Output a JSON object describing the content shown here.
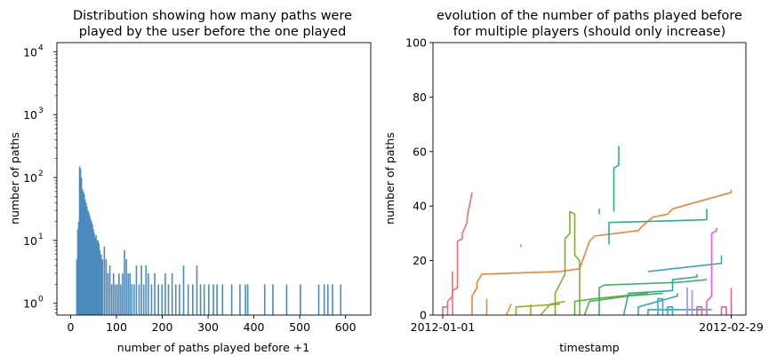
{
  "chart_data": [
    {
      "type": "bar",
      "title_lines": [
        "Distribution showing how many paths were",
        "played by the user before the one played"
      ],
      "xlabel": "number of paths played before +1",
      "ylabel": "number of paths",
      "xlim": [
        -30,
        655
      ],
      "ylim": [
        0.65,
        14000
      ],
      "yscale": "log",
      "x_ticks": [
        0,
        100,
        200,
        300,
        400,
        500,
        600
      ],
      "x_tick_labels": [
        "0",
        "100",
        "200",
        "300",
        "400",
        "500",
        "600"
      ],
      "y_ticks": [
        1,
        10,
        100,
        1000,
        10000
      ],
      "y_tick_labels": [
        "10",
        "10",
        "10",
        "10",
        "10"
      ],
      "y_tick_exponents": [
        "0",
        "1",
        "2",
        "3",
        "4"
      ],
      "bar_color": "#4b8bbe",
      "bars": [
        {
          "x": 12,
          "value": 5
        },
        {
          "x": 14,
          "value": 15
        },
        {
          "x": 16,
          "value": 20
        },
        {
          "x": 18,
          "value": 150
        },
        {
          "x": 20,
          "value": 140
        },
        {
          "x": 22,
          "value": 100
        },
        {
          "x": 24,
          "value": 65
        },
        {
          "x": 26,
          "value": 60
        },
        {
          "x": 28,
          "value": 55
        },
        {
          "x": 30,
          "value": 45
        },
        {
          "x": 32,
          "value": 40
        },
        {
          "x": 34,
          "value": 35
        },
        {
          "x": 36,
          "value": 30
        },
        {
          "x": 38,
          "value": 28
        },
        {
          "x": 40,
          "value": 25
        },
        {
          "x": 42,
          "value": 22
        },
        {
          "x": 44,
          "value": 20
        },
        {
          "x": 46,
          "value": 18
        },
        {
          "x": 48,
          "value": 15
        },
        {
          "x": 50,
          "value": 13
        },
        {
          "x": 52,
          "value": 11
        },
        {
          "x": 54,
          "value": 12
        },
        {
          "x": 56,
          "value": 10
        },
        {
          "x": 58,
          "value": 10
        },
        {
          "x": 60,
          "value": 9
        },
        {
          "x": 62,
          "value": 7
        },
        {
          "x": 65,
          "value": 6
        },
        {
          "x": 68,
          "value": 5
        },
        {
          "x": 72,
          "value": 8
        },
        {
          "x": 76,
          "value": 5
        },
        {
          "x": 80,
          "value": 3
        },
        {
          "x": 84,
          "value": 4
        },
        {
          "x": 88,
          "value": 2
        },
        {
          "x": 92,
          "value": 3
        },
        {
          "x": 96,
          "value": 2
        },
        {
          "x": 100,
          "value": 2
        },
        {
          "x": 104,
          "value": 3
        },
        {
          "x": 108,
          "value": 2
        },
        {
          "x": 112,
          "value": 3
        },
        {
          "x": 116,
          "value": 7
        },
        {
          "x": 120,
          "value": 5
        },
        {
          "x": 124,
          "value": 3
        },
        {
          "x": 128,
          "value": 3
        },
        {
          "x": 132,
          "value": 2
        },
        {
          "x": 137,
          "value": 2
        },
        {
          "x": 142,
          "value": 4
        },
        {
          "x": 148,
          "value": 2
        },
        {
          "x": 153,
          "value": 4
        },
        {
          "x": 158,
          "value": 2
        },
        {
          "x": 163,
          "value": 4
        },
        {
          "x": 168,
          "value": 3
        },
        {
          "x": 175,
          "value": 2
        },
        {
          "x": 182,
          "value": 3
        },
        {
          "x": 190,
          "value": 2
        },
        {
          "x": 198,
          "value": 2
        },
        {
          "x": 205,
          "value": 3
        },
        {
          "x": 212,
          "value": 2
        },
        {
          "x": 220,
          "value": 3
        },
        {
          "x": 228,
          "value": 2
        },
        {
          "x": 236,
          "value": 2
        },
        {
          "x": 245,
          "value": 4
        },
        {
          "x": 255,
          "value": 2
        },
        {
          "x": 265,
          "value": 2
        },
        {
          "x": 274,
          "value": 4
        },
        {
          "x": 282,
          "value": 2
        },
        {
          "x": 290,
          "value": 2
        },
        {
          "x": 300,
          "value": 2
        },
        {
          "x": 310,
          "value": 2
        },
        {
          "x": 318,
          "value": 2
        },
        {
          "x": 330,
          "value": 2
        },
        {
          "x": 350,
          "value": 2
        },
        {
          "x": 368,
          "value": 2
        },
        {
          "x": 380,
          "value": 2
        },
        {
          "x": 385,
          "value": 2
        },
        {
          "x": 422,
          "value": 2
        },
        {
          "x": 440,
          "value": 2
        },
        {
          "x": 470,
          "value": 2
        },
        {
          "x": 500,
          "value": 2
        },
        {
          "x": 540,
          "value": 2
        },
        {
          "x": 552,
          "value": 2
        },
        {
          "x": 560,
          "value": 2
        },
        {
          "x": 570,
          "value": 2
        },
        {
          "x": 588,
          "value": 2
        }
      ]
    },
    {
      "type": "line",
      "title_lines": [
        "evolution of the number of paths played before",
        "for multiple players (should only increase)"
      ],
      "xlabel": "timestamp",
      "ylabel": "number of paths",
      "xlim": [
        "2011-12-30",
        "2012-03-03"
      ],
      "ylim": [
        0,
        100
      ],
      "y_ticks": [
        0,
        20,
        40,
        60,
        80,
        100
      ],
      "y_tick_labels": [
        "0",
        "20",
        "40",
        "60",
        "80",
        "100"
      ],
      "x_ticks": [
        "2012-01-01",
        "2012-02-29"
      ],
      "x_tick_labels": [
        "2012-01-01",
        "2012-02-29"
      ],
      "series": [
        {
          "color": "#e8716e",
          "points": [
            [
              "2012-01-01",
              0
            ],
            [
              "2012-01-01",
              3
            ],
            [
              "2012-01-02",
              3
            ],
            [
              "2012-01-02",
              5
            ],
            [
              "2012-01-03",
              7
            ],
            [
              "2012-01-03",
              9
            ],
            [
              "2012-01-04",
              10
            ],
            [
              "2012-01-04",
              27
            ],
            [
              "2012-01-05",
              28
            ],
            [
              "2012-01-05",
              30
            ],
            [
              "2012-01-06",
              34
            ],
            [
              "2012-01-06",
              36
            ],
            [
              "2012-01-07",
              45
            ]
          ]
        },
        {
          "color": "#e8716e",
          "points": [
            [
              "2012-01-03",
              0
            ],
            [
              "2012-01-03",
              8
            ],
            [
              "2012-01-03",
              16
            ]
          ]
        },
        {
          "color": "#e8716e",
          "points": [
            [
              "2012-01-02",
              0
            ],
            [
              "2012-01-02",
              4
            ]
          ]
        },
        {
          "color": "#e8863a",
          "points": [
            [
              "2012-01-07",
              0
            ],
            [
              "2012-01-07",
              7
            ],
            [
              "2012-01-08",
              10
            ],
            [
              "2012-01-08",
              12
            ],
            [
              "2012-01-09",
              15
            ],
            [
              "2012-01-25",
              16
            ],
            [
              "2012-01-29",
              17
            ],
            [
              "2012-01-30",
              22
            ],
            [
              "2012-01-31",
              27
            ],
            [
              "2012-02-01",
              29
            ],
            [
              "2012-02-10",
              31
            ],
            [
              "2012-02-11",
              33
            ],
            [
              "2012-02-13",
              36
            ],
            [
              "2012-02-16",
              37
            ],
            [
              "2012-02-17",
              39
            ],
            [
              "2012-02-29",
              45
            ],
            [
              "2012-02-29",
              46
            ]
          ]
        },
        {
          "color": "#d4932f",
          "points": [
            [
              "2012-01-10",
              0
            ],
            [
              "2012-01-10",
              6
            ]
          ]
        },
        {
          "color": "#cc9b2a",
          "points": [
            [
              "2012-01-14",
              0
            ],
            [
              "2012-01-15",
              4
            ]
          ]
        },
        {
          "color": "#b69e27",
          "points": [
            [
              "2012-01-17",
              25
            ],
            [
              "2012-01-17",
              26
            ]
          ]
        },
        {
          "color": "#b69e27",
          "points": [
            [
              "2012-01-19",
              0
            ],
            [
              "2012-01-19",
              4
            ]
          ]
        },
        {
          "color": "#a7a62c",
          "points": [
            [
              "2012-01-16",
              0
            ],
            [
              "2012-01-16",
              3
            ],
            [
              "2012-01-25",
              4
            ]
          ]
        },
        {
          "color": "#9aa82f",
          "points": [
            [
              "2012-01-21",
              0
            ],
            [
              "2012-01-23",
              4
            ],
            [
              "2012-01-26",
              5
            ]
          ]
        },
        {
          "color": "#7fae35",
          "points": [
            [
              "2012-01-24",
              0
            ],
            [
              "2012-01-24",
              8
            ],
            [
              "2012-01-26",
              15
            ],
            [
              "2012-01-26",
              28
            ],
            [
              "2012-01-27",
              30
            ],
            [
              "2012-01-27",
              38
            ],
            [
              "2012-01-28",
              37
            ],
            [
              "2012-01-28",
              22
            ],
            [
              "2012-01-29",
              20
            ],
            [
              "2012-01-29",
              0
            ]
          ]
        },
        {
          "color": "#5bb23f",
          "points": [
            [
              "2012-01-28",
              0
            ],
            [
              "2012-01-28",
              5
            ],
            [
              "2012-02-01",
              6
            ],
            [
              "2012-02-12",
              8
            ]
          ]
        },
        {
          "color": "#47b14b",
          "points": [
            [
              "2012-01-30",
              0
            ],
            [
              "2012-01-31",
              5
            ],
            [
              "2012-02-08",
              7
            ],
            [
              "2012-02-15",
              8
            ]
          ]
        },
        {
          "color": "#3fb06a",
          "points": [
            [
              "2012-02-02",
              0
            ],
            [
              "2012-02-02",
              10
            ],
            [
              "2012-02-03",
              11
            ],
            [
              "2012-02-18",
              12
            ],
            [
              "2012-02-24",
              13
            ]
          ]
        },
        {
          "color": "#3aae88",
          "points": [
            [
              "2012-02-02",
              37
            ],
            [
              "2012-02-02",
              39
            ]
          ]
        },
        {
          "color": "#2fac90",
          "points": [
            [
              "2012-02-04",
              26
            ],
            [
              "2012-02-04",
              30
            ],
            [
              "2012-02-04",
              34
            ],
            [
              "2012-02-05",
              34
            ],
            [
              "2012-02-24",
              35
            ],
            [
              "2012-02-24",
              39
            ]
          ]
        },
        {
          "color": "#2fac90",
          "points": [
            [
              "2012-02-05",
              38
            ],
            [
              "2012-02-05",
              54
            ],
            [
              "2012-02-06",
              55
            ],
            [
              "2012-02-06",
              62
            ]
          ]
        },
        {
          "color": "#2dab9e",
          "points": [
            [
              "2012-02-07",
              0
            ],
            [
              "2012-02-08",
              8
            ],
            [
              "2012-02-17",
              9
            ],
            [
              "2012-02-17",
              13
            ],
            [
              "2012-02-22",
              14
            ],
            [
              "2012-02-22",
              15
            ]
          ]
        },
        {
          "color": "#2eaaab",
          "points": [
            [
              "2012-02-12",
              0
            ],
            [
              "2012-02-12",
              2
            ],
            [
              "2012-02-25",
              2
            ]
          ]
        },
        {
          "color": "#33a9b7",
          "points": [
            [
              "2012-02-10",
              0
            ],
            [
              "2012-02-10",
              3
            ],
            [
              "2012-02-18",
              7
            ],
            [
              "2012-02-18",
              8
            ]
          ]
        },
        {
          "color": "#33a9b7",
          "points": [
            [
              "2012-02-12",
              16
            ],
            [
              "2012-02-27",
              19
            ],
            [
              "2012-02-27",
              22
            ]
          ]
        },
        {
          "color": "#3aa6c8",
          "points": [
            [
              "2012-02-14",
              0
            ],
            [
              "2012-02-14",
              6
            ],
            [
              "2012-02-15",
              6
            ],
            [
              "2012-02-15",
              0
            ]
          ]
        },
        {
          "color": "#3aa0d6",
          "points": [
            [
              "2012-02-16",
              0
            ],
            [
              "2012-02-16",
              3
            ],
            [
              "2012-02-17",
              3
            ],
            [
              "2012-02-17",
              0
            ]
          ]
        },
        {
          "color": "#9a8ef0",
          "points": [
            [
              "2012-02-20",
              0
            ],
            [
              "2012-02-20",
              10
            ],
            [
              "2012-02-20",
              0
            ]
          ]
        },
        {
          "color": "#b987f0",
          "points": [
            [
              "2012-02-21",
              0
            ],
            [
              "2012-02-21",
              9
            ],
            [
              "2012-02-21",
              0
            ]
          ]
        },
        {
          "color": "#e45fd8",
          "points": [
            [
              "2012-02-24",
              0
            ],
            [
              "2012-02-24",
              5
            ],
            [
              "2012-02-25",
              7
            ],
            [
              "2012-02-25",
              30
            ],
            [
              "2012-02-26",
              31
            ],
            [
              "2012-02-26",
              32
            ]
          ]
        },
        {
          "color": "#e85aa8",
          "points": [
            [
              "2012-02-22",
              0
            ],
            [
              "2012-02-22",
              3
            ],
            [
              "2012-02-23",
              3
            ],
            [
              "2012-02-23",
              0
            ]
          ]
        },
        {
          "color": "#e85aa8",
          "points": [
            [
              "2012-02-27",
              0
            ],
            [
              "2012-02-27",
              3
            ],
            [
              "2012-02-28",
              3
            ],
            [
              "2012-02-28",
              0
            ]
          ]
        },
        {
          "color": "#e8628f",
          "points": [
            [
              "2012-02-29",
              0
            ],
            [
              "2012-02-29",
              10
            ]
          ]
        }
      ]
    }
  ]
}
